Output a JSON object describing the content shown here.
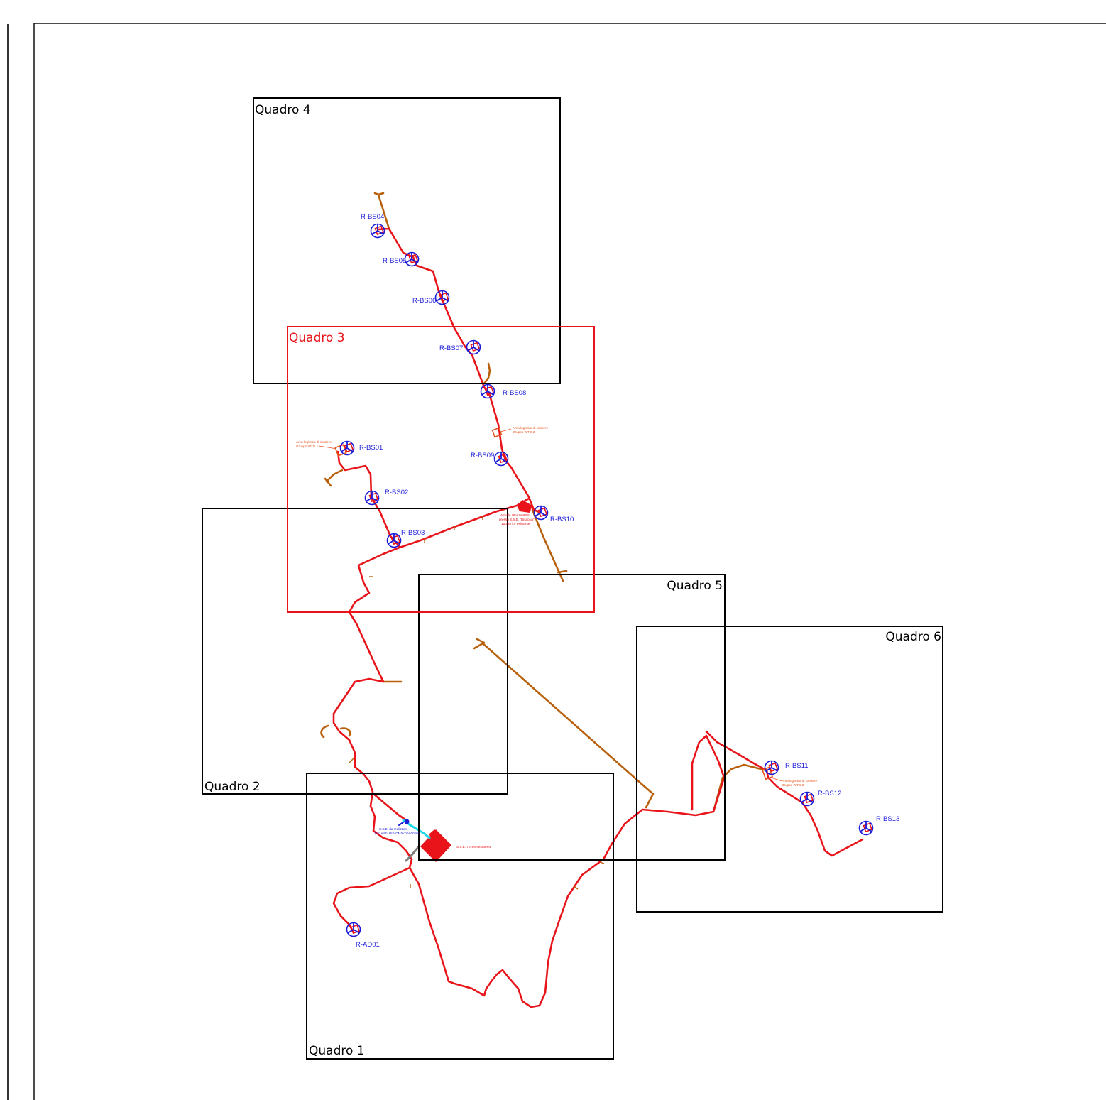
{
  "quadri": {
    "q1": "Quadro 1",
    "q2": "Quadro 2",
    "q3": "Quadro 3",
    "q4": "Quadro 4",
    "q5": "Quadro 5",
    "q6": "Quadro 6"
  },
  "turbines": {
    "bs01": "R-BS01",
    "bs02": "R-BS02",
    "bs03": "R-BS03",
    "bs04": "R-BS04",
    "bs05": "R-BS05",
    "bs06": "R-BS06",
    "bs07": "R-BS07",
    "bs08": "R-BS08",
    "bs09": "R-BS09",
    "bs10": "R-BS10",
    "bs11": "R-BS11",
    "bs12": "R-BS12",
    "bs13": "R-BS13",
    "ad01": "R-AD01"
  },
  "notes": {
    "area1_l1": "Area logistica di cantiere",
    "area1_l2": "Gruppo WTG 1",
    "area2_l1": "Area logistica di cantiere",
    "area2_l2": "Gruppo WTG 2",
    "area3_l1": "Area logistica di cantiere",
    "area3_l2": "Gruppo WTG 3",
    "sse_existing": "S.S.E. TERNA esistente",
    "sse_new_l1": "S.S.E. da realizzare",
    "sse_new_l2": "(cfr. elab. BIS-OMX-TAV-0010)",
    "utente_l1": "Attuale Utenza RSS",
    "utente_l2": "presso S.S.E. \"Bisaccia\"",
    "utente_l3": "150/20 kV esistente"
  },
  "colors": {
    "frame": "#000000",
    "quadro_active": "#e8141a",
    "cable_route": "#e8141a",
    "road_brown": "#b8600c",
    "turbine_symbol": "#1a1ad8",
    "connection_cyan": "#1ad8e8",
    "connection_grey": "#7a7a7a"
  }
}
